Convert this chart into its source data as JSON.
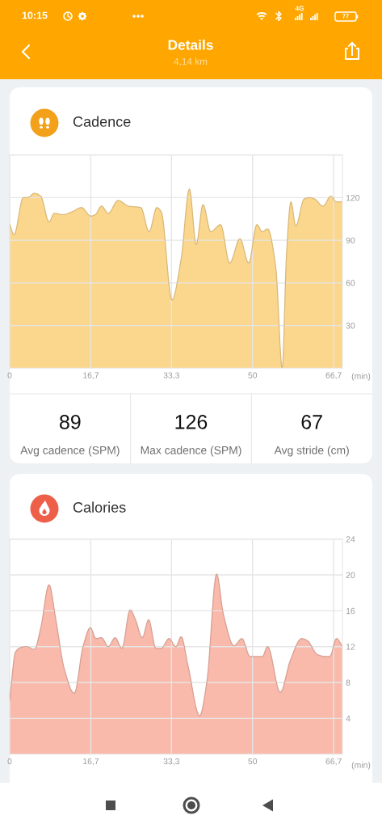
{
  "chart_data": [
    {
      "type": "other",
      "title": "Details",
      "subtitle": "4,14 km",
      "annotations": [
        "10:15",
        "4G",
        "77"
      ]
    },
    {
      "type": "area",
      "title": "Cadence",
      "xlabel": "(min)",
      "x": [
        0,
        0.9,
        2.8,
        3.7,
        5.1,
        6.4,
        8.1,
        9.2,
        10.9,
        12.8,
        14.8,
        16.7,
        17.6,
        18.9,
        20.3,
        22.3,
        24.5,
        27.0,
        28.7,
        30.3,
        31.2,
        33.4,
        35.3,
        37.0,
        38.4,
        39.8,
        41.4,
        43.4,
        45.3,
        47.4,
        49.2,
        50.9,
        52.0,
        53.1,
        54.8,
        56.1,
        57.0,
        57.9,
        58.9,
        60.6,
        61.7,
        62.8,
        64.5,
        66.1,
        67.3,
        68.5
      ],
      "values": [
        101,
        94,
        120,
        120,
        123,
        121,
        103,
        109,
        108,
        110,
        113,
        107,
        108,
        114,
        109,
        118,
        114,
        113,
        96,
        113,
        110,
        48,
        77,
        126,
        87,
        115,
        96,
        101,
        74,
        91,
        74,
        101,
        96,
        98,
        70,
        0,
        81,
        117,
        100,
        119,
        120,
        119,
        114,
        121,
        117,
        117
      ],
      "color": "#fbd68d",
      "xlim": [
        0,
        68.5
      ],
      "ylim": [
        0,
        150
      ],
      "xticks": [
        0,
        {
          "value": 16.7,
          "label": "16,7"
        },
        {
          "value": 33.3,
          "label": "33,3"
        },
        50,
        {
          "value": 66.7,
          "label": "66,7"
        }
      ],
      "yticks": [
        30,
        60,
        90,
        120,
        {
          "value": 150,
          "label": null
        }
      ],
      "grid": true
    },
    {
      "type": "other",
      "annotations": [
        "89",
        "Avg cadence (SPM)",
        "126",
        "Max cadence (SPM)",
        "67",
        "Avg stride (cm)"
      ]
    },
    {
      "type": "area",
      "title": "Calories",
      "xlabel": "(min)",
      "x": [
        0,
        1.2,
        2.3,
        3.4,
        5.1,
        6.4,
        8.1,
        9.5,
        11.2,
        13.3,
        15.1,
        16.6,
        17.8,
        18.9,
        20.3,
        21.7,
        23.1,
        24.8,
        25.9,
        27.3,
        28.6,
        30.1,
        31.2,
        32.8,
        34.2,
        35.3,
        36.7,
        39.1,
        40.6,
        42.6,
        44.0,
        46.2,
        47.8,
        49.5,
        51.2,
        52.0,
        53.1,
        55.7,
        57.8,
        60.1,
        61.2,
        63.4,
        65.1,
        65.9,
        67.3,
        68.5
      ],
      "values": [
        6.0,
        11.4,
        11.9,
        12.0,
        11.7,
        14.1,
        18.9,
        15.0,
        9.6,
        6.8,
        12.0,
        14.1,
        12.9,
        13.0,
        12.0,
        13.0,
        11.8,
        16.1,
        15.0,
        13.0,
        15.0,
        11.8,
        11.8,
        12.9,
        12.0,
        13.1,
        9.9,
        4.3,
        8.1,
        20.1,
        15.6,
        12.1,
        12.9,
        10.9,
        10.9,
        10.9,
        12.0,
        6.9,
        10.5,
        12.9,
        12.7,
        11.1,
        10.9,
        10.9,
        12.9,
        12.0
      ],
      "color": "#f9b9ab",
      "xlim": [
        0,
        68.5
      ],
      "ylim": [
        0,
        24
      ],
      "xticks": [
        0,
        {
          "value": 16.7,
          "label": "16,7"
        },
        {
          "value": 33.3,
          "label": "33,3"
        },
        50,
        {
          "value": 66.7,
          "label": "66,7"
        }
      ],
      "yticks": [
        4,
        8,
        12,
        16,
        20,
        24
      ],
      "grid": true
    }
  ]
}
